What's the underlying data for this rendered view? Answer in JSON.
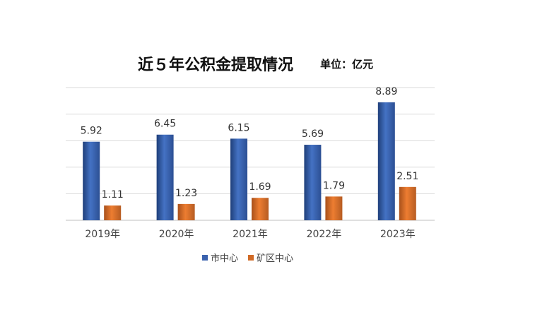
{
  "chart_data": {
    "type": "bar",
    "title": "近５年公积金提取情况",
    "unit": "单位：亿元",
    "categories": [
      "2019年",
      "2020年",
      "2021年",
      "2022年",
      "2023年"
    ],
    "series": [
      {
        "name": "市中心",
        "values": [
          5.92,
          6.45,
          6.15,
          5.69,
          8.89
        ],
        "color": "#4472C4"
      },
      {
        "name": "矿区中心",
        "values": [
          1.11,
          1.23,
          1.69,
          1.79,
          2.51
        ],
        "color": "#ED7D31"
      }
    ],
    "value_labels": [
      [
        "5.92",
        "6.45",
        "6.15",
        "5.69",
        "8.89"
      ],
      [
        "1.11",
        "1.23",
        "1.69",
        "1.79",
        "2.51"
      ]
    ],
    "ylim": [
      0,
      10
    ],
    "grid": true,
    "legend_position": "bottom"
  }
}
